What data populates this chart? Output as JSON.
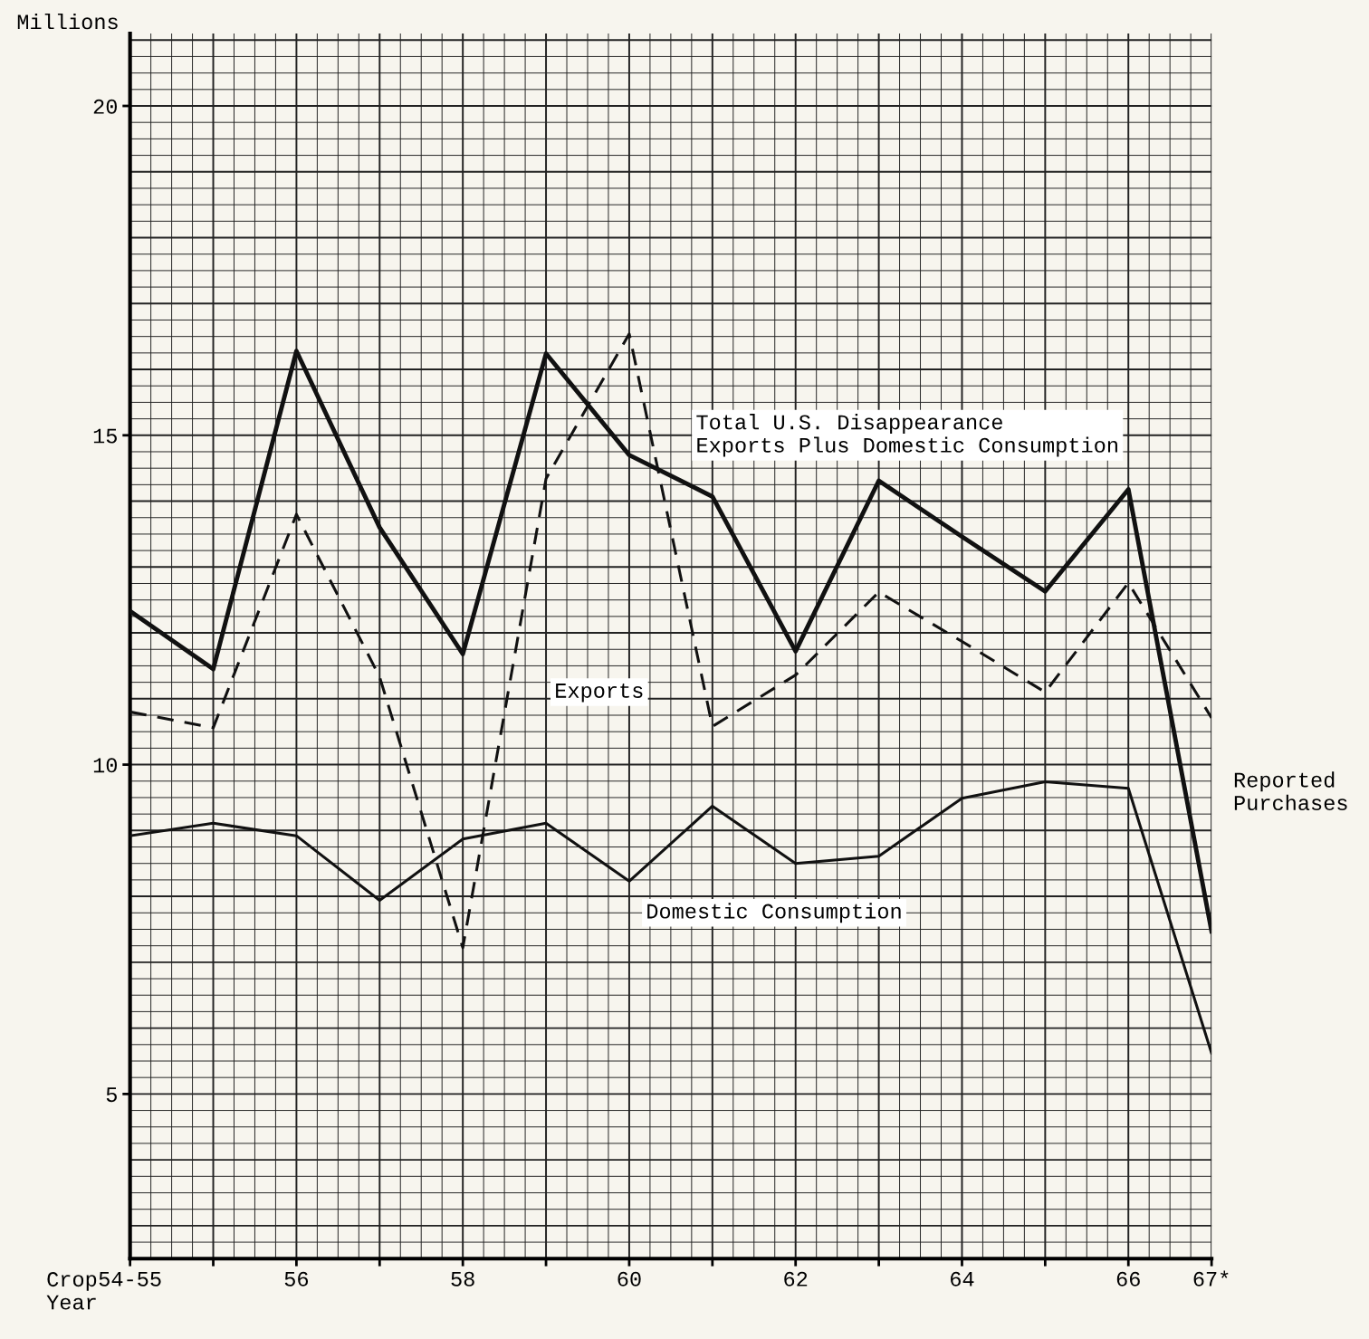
{
  "chart_data": {
    "type": "line",
    "ylabel": "Millions",
    "xlabel": "Crop Year",
    "categories": [
      "54-55",
      null,
      "56",
      null,
      "58",
      null,
      "60",
      null,
      "62",
      null,
      "64",
      null,
      "66",
      "67*"
    ],
    "series": [
      {
        "name": "Total U.S. Disappearance\nExports Plus Domestic Consumption",
        "color": "#111111",
        "line_style": "solid",
        "values": [
          12.33,
          11.45,
          16.28,
          13.6,
          11.68,
          16.24,
          14.7,
          14.07,
          11.72,
          14.31,
          13.46,
          12.63,
          14.18,
          7.47
        ]
      },
      {
        "name": "Exports",
        "color": "#111111",
        "line_style": "dashed",
        "values": [
          10.8,
          10.56,
          13.8,
          11.33,
          7.22,
          14.34,
          16.54,
          10.58,
          11.36,
          12.62,
          11.87,
          11.1,
          12.76,
          10.71
        ]
      },
      {
        "name": "Domestic Consumption",
        "color": "#111111",
        "line_style": "solid",
        "values": [
          8.92,
          9.11,
          8.92,
          7.94,
          8.87,
          9.11,
          8.23,
          9.37,
          8.5,
          8.61,
          9.49,
          9.74,
          9.64,
          5.62
        ]
      }
    ],
    "annotations": [
      "Reported\nPurchases"
    ],
    "ylim": [
      2.5,
      21.1
    ],
    "yticks": [
      5,
      10,
      15,
      20
    ],
    "grid": true,
    "marker": "none",
    "legend": false
  }
}
